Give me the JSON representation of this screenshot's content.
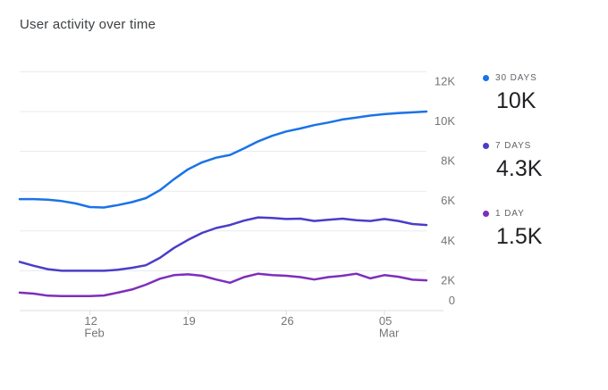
{
  "title": "User activity over time",
  "legend": {
    "items": [
      {
        "label": "30 DAYS",
        "value": "10K",
        "color": "#1A73E8"
      },
      {
        "label": "7 DAYS",
        "value": "4.3K",
        "color": "#4A3DC8"
      },
      {
        "label": "1 DAY",
        "value": "1.5K",
        "color": "#7D2EBD"
      }
    ]
  },
  "ui": {
    "gridline_color": "#E8EAED",
    "axis_line_color": "#DADCE0",
    "axis_label_color": "#757575",
    "title_color": "#3C4043",
    "legend_label_color": "#5F6368",
    "legend_value_color": "#202124"
  },
  "chart_data": {
    "type": "line",
    "title": "User activity over time",
    "xlabel": "",
    "ylabel": "",
    "ylim": [
      0,
      12000
    ],
    "grid": "horizontal-only",
    "legend_position": "right",
    "x": [
      "Feb 07",
      "Feb 08",
      "Feb 09",
      "Feb 10",
      "Feb 11",
      "Feb 12",
      "Feb 13",
      "Feb 14",
      "Feb 15",
      "Feb 16",
      "Feb 17",
      "Feb 18",
      "Feb 19",
      "Feb 20",
      "Feb 21",
      "Feb 22",
      "Feb 23",
      "Feb 24",
      "Feb 25",
      "Feb 26",
      "Feb 27",
      "Feb 28",
      "Mar 01",
      "Mar 02",
      "Mar 03",
      "Mar 04",
      "Mar 05",
      "Mar 06",
      "Mar 07",
      "Mar 08"
    ],
    "x_ticks": [
      {
        "index": 5,
        "line1": "12",
        "line2": "Feb"
      },
      {
        "index": 12,
        "line1": "19",
        "line2": ""
      },
      {
        "index": 19,
        "line1": "26",
        "line2": ""
      },
      {
        "index": 26,
        "line1": "05",
        "line2": "Mar"
      }
    ],
    "y_ticks": [
      0,
      2000,
      4000,
      6000,
      8000,
      10000,
      12000
    ],
    "y_tick_labels": [
      "0",
      "2K",
      "4K",
      "6K",
      "8K",
      "10K",
      "12K"
    ],
    "series": [
      {
        "name": "30 DAYS",
        "color": "#1A73E8",
        "current_value_label": "10K",
        "values": [
          5600,
          5600,
          5570,
          5500,
          5380,
          5200,
          5180,
          5300,
          5450,
          5650,
          6050,
          6600,
          7100,
          7450,
          7680,
          7820,
          8150,
          8500,
          8780,
          9000,
          9150,
          9320,
          9450,
          9600,
          9700,
          9800,
          9870,
          9920,
          9960,
          10000
        ]
      },
      {
        "name": "7 DAYS",
        "color": "#4A3DC8",
        "current_value_label": "4.3K",
        "values": [
          2450,
          2250,
          2080,
          2000,
          2000,
          2000,
          2000,
          2050,
          2150,
          2280,
          2650,
          3150,
          3550,
          3900,
          4150,
          4300,
          4520,
          4680,
          4650,
          4600,
          4620,
          4500,
          4560,
          4620,
          4540,
          4500,
          4600,
          4500,
          4350,
          4300
        ]
      },
      {
        "name": "1 DAY",
        "color": "#7D2EBD",
        "current_value_label": "1.5K",
        "values": [
          900,
          850,
          750,
          730,
          730,
          730,
          760,
          900,
          1060,
          1300,
          1600,
          1780,
          1820,
          1750,
          1560,
          1400,
          1680,
          1850,
          1780,
          1750,
          1680,
          1560,
          1680,
          1750,
          1850,
          1620,
          1780,
          1700,
          1550,
          1520
        ]
      }
    ]
  }
}
